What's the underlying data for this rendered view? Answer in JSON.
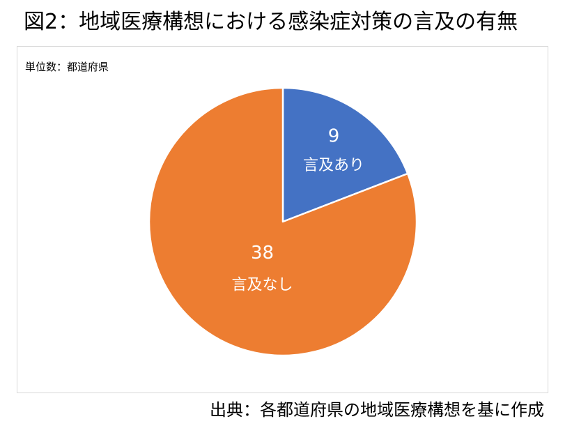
{
  "title": "図2：地域医療構想における感染症対策の言及の有無",
  "unit_label": "単位数：都道府県",
  "source": "出典：各都道府県の地域医療構想を基に作成",
  "chart_data": {
    "type": "pie",
    "slices": [
      {
        "label": "言及あり",
        "value": 9,
        "color": "#4472C4"
      },
      {
        "label": "言及なし",
        "value": 38,
        "color": "#ED7D31"
      }
    ],
    "start_angle": "12 o'clock",
    "direction": "clockwise",
    "legend": "none",
    "data_labels": "value and category inside slices"
  }
}
